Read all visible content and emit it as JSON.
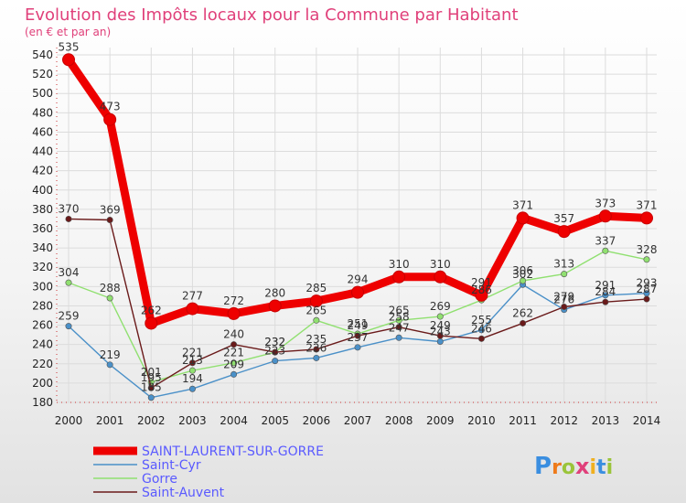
{
  "chart_data": {
    "type": "line",
    "title": "Evolution des Impôts locaux pour la Commune par Habitant",
    "subtitle": "(en € et par an)",
    "categories": [
      "2000",
      "2001",
      "2002",
      "2003",
      "2004",
      "2005",
      "2006",
      "2007",
      "2008",
      "2009",
      "2010",
      "2011",
      "2012",
      "2013",
      "2014"
    ],
    "ylim": [
      180,
      540
    ],
    "yticks": [
      180,
      200,
      220,
      240,
      260,
      280,
      300,
      320,
      340,
      360,
      380,
      400,
      420,
      440,
      460,
      480,
      500,
      520,
      540
    ],
    "grid": true,
    "legend_position": "bottom-left",
    "series": [
      {
        "name": "Saint-Cyr",
        "color": "#4a90c8",
        "values": [
          259,
          219,
          185,
          194,
          209,
          223,
          226,
          237,
          247,
          243,
          255,
          302,
          276,
          291,
          293
        ],
        "labels": [
          "259",
          "219",
          "185",
          "194",
          "209",
          "223",
          "226",
          "237",
          "247",
          "243",
          "255",
          "302",
          "276",
          "291",
          "293"
        ]
      },
      {
        "name": "Gorre",
        "color": "#90e070",
        "values": [
          304,
          288,
          201,
          213,
          221,
          232,
          265,
          251,
          265,
          269,
          286,
          306,
          313,
          337,
          328
        ],
        "labels": [
          "304",
          "288",
          "201",
          "213",
          "221",
          "232",
          "265",
          "251",
          "265",
          "269",
          "286",
          "306",
          "313",
          "337",
          "328"
        ]
      },
      {
        "name": "Saint-Auvent",
        "color": "#6a1a1a",
        "values": [
          370,
          369,
          195,
          221,
          240,
          232,
          235,
          249,
          258,
          249,
          246,
          262,
          279,
          284,
          287
        ],
        "labels": [
          "370",
          "369",
          "195",
          "221",
          "240",
          "232",
          "235",
          "249",
          "258",
          "249",
          "246",
          "262",
          "279",
          "284",
          "287"
        ]
      },
      {
        "name": "SAINT-LAURENT-SUR-GORRE",
        "color": "#ee0000",
        "values": [
          535,
          473,
          262,
          277,
          272,
          280,
          285,
          294,
          310,
          310,
          291,
          371,
          357,
          373,
          371
        ],
        "labels": [
          "535",
          "473",
          "262",
          "277",
          "272",
          "280",
          "285",
          "294",
          "310",
          "310",
          "291",
          "371",
          "357",
          "373",
          "371"
        ]
      }
    ]
  },
  "logo": {
    "text": "Proxiti"
  }
}
